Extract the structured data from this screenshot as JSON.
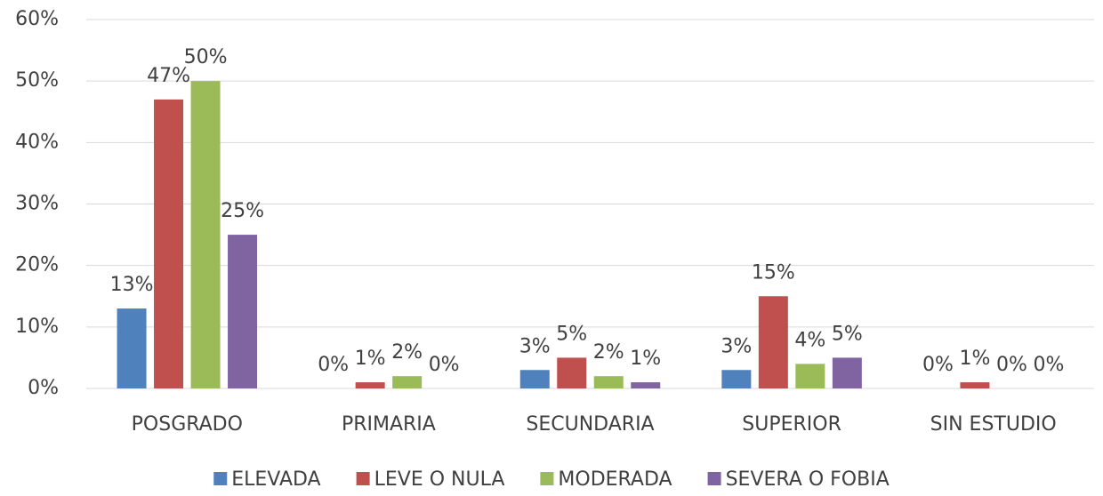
{
  "chart_data": {
    "type": "bar",
    "categories": [
      "POSGRADO",
      "PRIMARIA",
      "SECUNDARIA",
      "SUPERIOR",
      "SIN ESTUDIO"
    ],
    "series": [
      {
        "name": "ELEVADA",
        "color": "#4f81bd",
        "values": [
          13,
          0,
          3,
          3,
          0
        ],
        "value_labels": [
          "13%",
          "0%",
          "3%",
          "3%",
          "0%"
        ]
      },
      {
        "name": "LEVE O NULA",
        "color": "#c0504d",
        "values": [
          47,
          1,
          5,
          15,
          1
        ],
        "value_labels": [
          "47%",
          "1%",
          "5%",
          "15%",
          "1%"
        ]
      },
      {
        "name": "MODERADA",
        "color": "#9bbb59",
        "values": [
          50,
          2,
          2,
          4,
          0
        ],
        "value_labels": [
          "50%",
          "2%",
          "2%",
          "4%",
          "0%"
        ]
      },
      {
        "name": "SEVERA O FOBIA",
        "color": "#8064a2",
        "values": [
          25,
          0,
          1,
          5,
          0
        ],
        "value_labels": [
          "25%",
          "0%",
          "1%",
          "5%",
          "0%"
        ]
      }
    ],
    "ylim": [
      0,
      60
    ],
    "yticks": [
      {
        "value": 0,
        "label": "0%"
      },
      {
        "value": 10,
        "label": "10%"
      },
      {
        "value": 20,
        "label": "20%"
      },
      {
        "value": 30,
        "label": "30%"
      },
      {
        "value": 40,
        "label": "40%"
      },
      {
        "value": 50,
        "label": "50%"
      },
      {
        "value": 60,
        "label": "60%"
      }
    ],
    "grid": true,
    "legend": "bottom"
  }
}
